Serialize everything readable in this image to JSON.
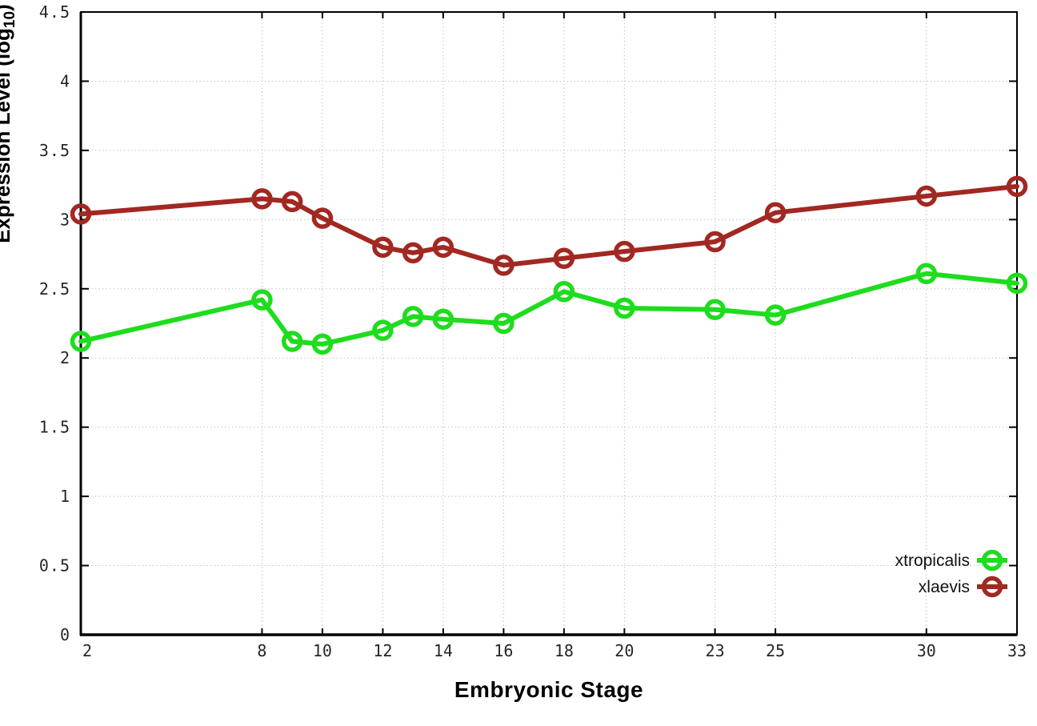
{
  "figure": {
    "background": "#ffffff",
    "border_color": "#000000",
    "grid_color": "#c4c4c4",
    "tick_label_color": "#262626"
  },
  "chart_data": {
    "type": "line",
    "title": "",
    "xlabel": "Embryonic Stage",
    "ylabel": "Expression Level (log10)",
    "ylabel_parts": {
      "prefix": "Expression Level (log",
      "sub": "10",
      "suffix": ")"
    },
    "x": [
      2,
      8,
      9,
      10,
      12,
      13,
      14,
      16,
      18,
      20,
      23,
      25,
      30,
      33
    ],
    "xticks": [
      2,
      8,
      10,
      12,
      14,
      16,
      18,
      20,
      23,
      25,
      30,
      33
    ],
    "xtick_labels": [
      "2",
      "8",
      "10",
      "12",
      "14",
      "16",
      "18",
      "20",
      "23",
      "25",
      "30",
      "33"
    ],
    "ytick_labels": [
      "0",
      "0.5",
      "1",
      "1.5",
      "2",
      "2.5",
      "3",
      "3.5",
      "4",
      "4.5"
    ],
    "yticks": [
      0,
      0.5,
      1,
      1.5,
      2,
      2.5,
      3,
      3.5,
      4,
      4.5
    ],
    "xlim": [
      2,
      33
    ],
    "ylim": [
      0,
      4.5
    ],
    "grid": true,
    "legend_position": "inside-bottom-right",
    "series": [
      {
        "name": "xtropicalis",
        "color": "#1edc1e",
        "marker": "open-circle",
        "values": [
          2.12,
          2.42,
          2.12,
          2.1,
          2.2,
          2.3,
          2.28,
          2.25,
          2.48,
          2.36,
          2.35,
          2.31,
          2.61,
          2.54
        ]
      },
      {
        "name": "xlaevis",
        "color": "#a22822",
        "marker": "open-circle",
        "values": [
          3.04,
          3.15,
          3.13,
          3.01,
          2.8,
          2.76,
          2.8,
          2.67,
          2.72,
          2.77,
          2.84,
          3.05,
          3.17,
          3.24
        ]
      }
    ]
  }
}
